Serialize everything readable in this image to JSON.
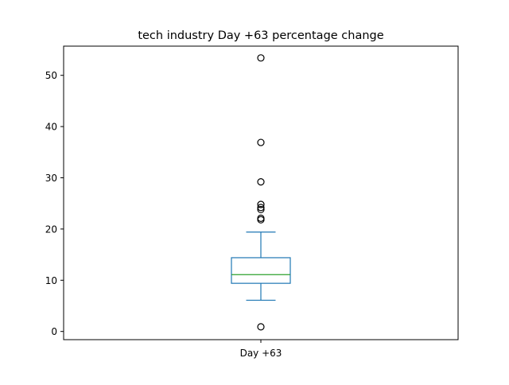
{
  "chart_data": {
    "type": "box",
    "title": "tech industry Day +63 percentage change",
    "xlabel": "",
    "ylabel": "",
    "categories": [
      "Day +63"
    ],
    "ylim": [
      -1.6,
      55.7
    ],
    "yticks": [
      0,
      10,
      20,
      30,
      40,
      50
    ],
    "grid": false,
    "boxes": [
      {
        "label": "Day +63",
        "whisker_low": 6.1,
        "q1": 9.4,
        "median": 11.1,
        "q3": 14.4,
        "whisker_high": 19.4,
        "outliers": [
          53.4,
          36.9,
          29.2,
          24.8,
          24.2,
          23.8,
          22.1,
          21.8,
          0.9
        ]
      }
    ],
    "colors": {
      "box": "#1f77b4",
      "median": "#2ca02c",
      "outlier": "#000000"
    }
  }
}
